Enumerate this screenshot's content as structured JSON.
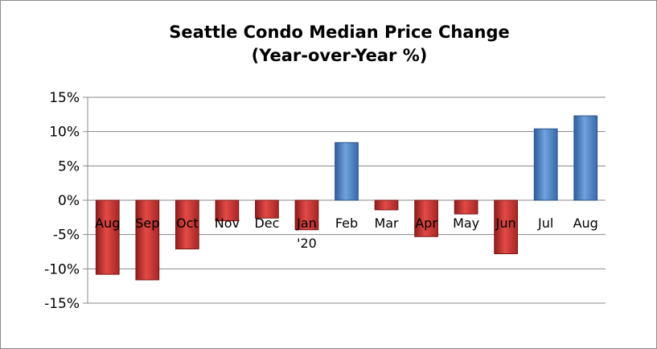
{
  "chart_data": {
    "type": "bar",
    "title": "Seattle Condo Median Price Change",
    "subtitle": "(Year-over-Year %)",
    "categories": [
      "Aug",
      "Sep",
      "Oct",
      "Nov",
      "Dec",
      "Jan\n'20",
      "Feb",
      "Mar",
      "Apr",
      "May",
      "Jun",
      "Jul",
      "Aug"
    ],
    "values": [
      -10.8,
      -11.6,
      -7.1,
      -3.0,
      -2.6,
      -4.3,
      8.4,
      -1.4,
      -5.3,
      -2.0,
      -7.8,
      10.4,
      12.3
    ],
    "ylim": [
      -15,
      15
    ],
    "yticks": [
      15,
      10,
      5,
      0,
      -5,
      -10,
      -15
    ],
    "ytick_labels": [
      "15%",
      "10%",
      "5%",
      "0%",
      "-5%",
      "-10%",
      "-15%"
    ],
    "xlabel": "",
    "ylabel": "",
    "grid": true,
    "legend": "none",
    "colors": {
      "negative": "#c0302e",
      "positive": "#4a7ebd"
    }
  }
}
